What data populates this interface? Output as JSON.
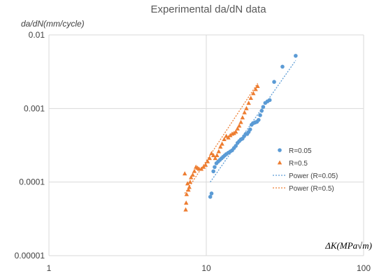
{
  "chart_data": {
    "type": "scatter",
    "title": "Experimental da/dN data",
    "ylabel": "da/dN(mm/cycle)",
    "xlabel": "ΔK(MPa√m)",
    "x_scale": "log",
    "y_scale": "log",
    "xlim": [
      1,
      100
    ],
    "ylim": [
      1e-05,
      0.01
    ],
    "x_ticks": [
      "1",
      "10",
      "100"
    ],
    "y_ticks": [
      "0.00001",
      "0.0001",
      "0.001",
      "0.01"
    ],
    "grid": true,
    "legend_position": "right",
    "series": [
      {
        "name": "R=0.05",
        "marker": "circle",
        "color": "#5b9bd5",
        "points": [
          [
            10.6,
            6.3e-05
          ],
          [
            10.8,
            7e-05
          ],
          [
            11.1,
            0.00014
          ],
          [
            11.3,
            0.00016
          ],
          [
            11.6,
            0.00018
          ],
          [
            11.9,
            0.00019
          ],
          [
            12.2,
            0.0002
          ],
          [
            12.5,
            0.00021
          ],
          [
            12.8,
            0.00022
          ],
          [
            13.1,
            0.00023
          ],
          [
            13.4,
            0.00024
          ],
          [
            13.8,
            0.00025
          ],
          [
            14.2,
            0.00026
          ],
          [
            14.6,
            0.00027
          ],
          [
            15.0,
            0.00029
          ],
          [
            15.4,
            0.00031
          ],
          [
            15.8,
            0.00034
          ],
          [
            16.2,
            0.00036
          ],
          [
            16.6,
            0.00038
          ],
          [
            17.0,
            0.00039
          ],
          [
            17.4,
            0.00042
          ],
          [
            17.8,
            0.00045
          ],
          [
            18.2,
            0.00045
          ],
          [
            18.6,
            0.00048
          ],
          [
            19.0,
            0.00052
          ],
          [
            19.4,
            0.0006
          ],
          [
            19.8,
            0.00063
          ],
          [
            20.2,
            0.00064
          ],
          [
            20.6,
            0.00065
          ],
          [
            21.0,
            0.00066
          ],
          [
            21.5,
            0.0007
          ],
          [
            22.0,
            0.00081
          ],
          [
            22.5,
            0.00093
          ],
          [
            23.0,
            0.00105
          ],
          [
            23.7,
            0.00119
          ],
          [
            24.5,
            0.00125
          ],
          [
            25.3,
            0.0013
          ],
          [
            27.0,
            0.0023
          ],
          [
            30.5,
            0.0037
          ],
          [
            37.0,
            0.0052
          ]
        ]
      },
      {
        "name": "R=0.5",
        "marker": "triangle",
        "color": "#ed7d31",
        "points": [
          [
            7.3,
            0.00013
          ],
          [
            7.4,
            4.2e-05
          ],
          [
            7.45,
            5.2e-05
          ],
          [
            7.5,
            6.8e-05
          ],
          [
            7.6,
            9.5e-05
          ],
          [
            7.7,
            7.8e-05
          ],
          [
            7.8,
            8.5e-05
          ],
          [
            7.9,
            0.0001
          ],
          [
            8.0,
            0.000115
          ],
          [
            8.2,
            0.000125
          ],
          [
            8.4,
            0.00014
          ],
          [
            8.6,
            0.00016
          ],
          [
            8.8,
            0.000155
          ],
          [
            9.0,
            0.00015
          ],
          [
            9.3,
            0.00015
          ],
          [
            9.6,
            0.00016
          ],
          [
            9.9,
            0.00017
          ],
          [
            10.2,
            0.00019
          ],
          [
            10.5,
            0.00021
          ],
          [
            10.8,
            0.000245
          ],
          [
            11.1,
            0.00023
          ],
          [
            11.4,
            0.00021
          ],
          [
            11.7,
            0.00023
          ],
          [
            12.0,
            0.00026
          ],
          [
            12.3,
            0.0003
          ],
          [
            12.6,
            0.00033
          ],
          [
            13.0,
            0.00038
          ],
          [
            13.4,
            0.00042
          ],
          [
            13.8,
            0.0004
          ],
          [
            14.2,
            0.00043
          ],
          [
            14.6,
            0.00045
          ],
          [
            15.0,
            0.00046
          ],
          [
            15.4,
            0.00048
          ],
          [
            15.8,
            0.00053
          ],
          [
            16.2,
            0.00058
          ],
          [
            16.6,
            0.00065
          ],
          [
            17.0,
            0.00075
          ],
          [
            17.5,
            0.00088
          ],
          [
            18.0,
            0.001
          ],
          [
            18.6,
            0.00118
          ],
          [
            19.2,
            0.00138
          ],
          [
            19.9,
            0.0016
          ],
          [
            20.6,
            0.00182
          ],
          [
            21.2,
            0.002
          ]
        ]
      }
    ],
    "trendlines": [
      {
        "name": "Power  (R=0.05)",
        "type": "power",
        "color": "#5b9bd5",
        "style": "dotted",
        "x_start": 10.6,
        "x_end": 37.0,
        "y_start": 0.0001,
        "y_end": 0.0045
      },
      {
        "name": "Power  (R=0.5)",
        "type": "power",
        "color": "#ed7d31",
        "style": "dotted",
        "x_start": 7.3,
        "x_end": 21.2,
        "y_start": 7e-05,
        "y_end": 0.0022
      }
    ]
  }
}
